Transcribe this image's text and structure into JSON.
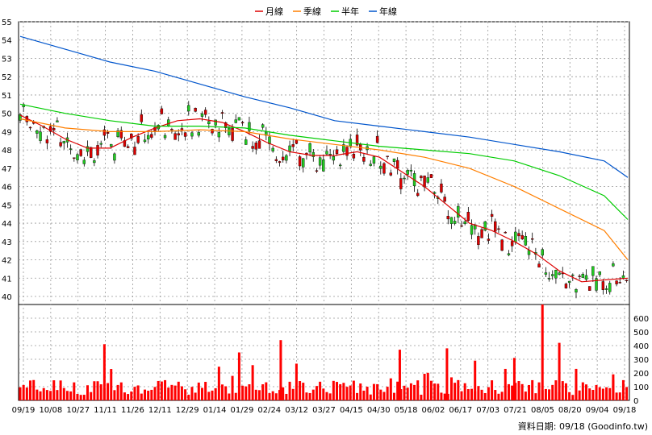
{
  "chart_data": {
    "type": "candlestick",
    "legend": [
      {
        "name": "月線",
        "color": "#dd0000"
      },
      {
        "name": "季線",
        "color": "#ff7f00"
      },
      {
        "name": "半年",
        "color": "#00cc00"
      },
      {
        "name": "年線",
        "color": "#0055cc"
      }
    ],
    "legend_placement": "top-center",
    "grid": true,
    "price_axis": {
      "ylim": [
        40,
        55
      ],
      "ticks": [
        "55",
        "54",
        "53",
        "52",
        "51",
        "50",
        "49",
        "48",
        "47",
        "46",
        "45",
        "44",
        "43",
        "42",
        "41",
        "40"
      ]
    },
    "volume_axis": {
      "ylim": [
        0,
        700
      ],
      "ticks": [
        "600",
        "500",
        "400",
        "300",
        "200",
        "100",
        "0"
      ]
    },
    "x_ticks": [
      "09/19",
      "10/08",
      "10/27",
      "11/11",
      "11/26",
      "12/11",
      "12/29",
      "01/14",
      "01/29",
      "02/24",
      "03/12",
      "03/27",
      "04/15",
      "04/30",
      "05/18",
      "06/02",
      "06/17",
      "07/03",
      "07/21",
      "08/05",
      "08/20",
      "09/04",
      "09/18"
    ],
    "colors": {
      "up": "#dd0000",
      "down": "#22cc22",
      "volume": "#ff0000",
      "grid": "#999999"
    },
    "series": [
      {
        "name": "月線",
        "points": [
          [
            0,
            49.9
          ],
          [
            20,
            49.3
          ],
          [
            40,
            48.6
          ],
          [
            60,
            48.1
          ],
          [
            80,
            48.1
          ],
          [
            100,
            48.7
          ],
          [
            120,
            49.2
          ],
          [
            140,
            49.6
          ],
          [
            160,
            49.7
          ],
          [
            180,
            49.5
          ],
          [
            200,
            49.0
          ],
          [
            220,
            48.4
          ],
          [
            240,
            47.9
          ],
          [
            260,
            47.7
          ],
          [
            280,
            47.7
          ],
          [
            300,
            47.9
          ],
          [
            320,
            47.6
          ],
          [
            340,
            46.8
          ],
          [
            360,
            46.0
          ],
          [
            380,
            45.0
          ],
          [
            400,
            44.0
          ],
          [
            420,
            43.6
          ],
          [
            440,
            43.0
          ],
          [
            460,
            42.3
          ],
          [
            480,
            41.4
          ],
          [
            500,
            40.8
          ],
          [
            520,
            40.9
          ],
          [
            541,
            41.0
          ]
        ]
      },
      {
        "name": "季線",
        "points": [
          [
            0,
            49.7
          ],
          [
            40,
            49.2
          ],
          [
            80,
            49.0
          ],
          [
            120,
            49.0
          ],
          [
            160,
            49.1
          ],
          [
            200,
            49.0
          ],
          [
            240,
            48.6
          ],
          [
            280,
            48.3
          ],
          [
            320,
            48.0
          ],
          [
            360,
            47.6
          ],
          [
            400,
            47.0
          ],
          [
            440,
            46.0
          ],
          [
            480,
            44.8
          ],
          [
            520,
            43.6
          ],
          [
            541,
            42.0
          ]
        ]
      },
      {
        "name": "半年",
        "points": [
          [
            0,
            50.5
          ],
          [
            40,
            50.0
          ],
          [
            80,
            49.6
          ],
          [
            120,
            49.3
          ],
          [
            160,
            49.3
          ],
          [
            200,
            49.2
          ],
          [
            240,
            48.8
          ],
          [
            280,
            48.5
          ],
          [
            320,
            48.2
          ],
          [
            360,
            48.0
          ],
          [
            400,
            47.8
          ],
          [
            440,
            47.4
          ],
          [
            480,
            46.6
          ],
          [
            520,
            45.5
          ],
          [
            541,
            44.2
          ]
        ]
      },
      {
        "name": "年線",
        "points": [
          [
            0,
            54.2
          ],
          [
            40,
            53.5
          ],
          [
            80,
            52.8
          ],
          [
            120,
            52.3
          ],
          [
            160,
            51.6
          ],
          [
            200,
            50.9
          ],
          [
            240,
            50.3
          ],
          [
            280,
            49.6
          ],
          [
            320,
            49.3
          ],
          [
            360,
            49.0
          ],
          [
            400,
            48.7
          ],
          [
            440,
            48.3
          ],
          [
            480,
            47.9
          ],
          [
            520,
            47.4
          ],
          [
            541,
            46.5
          ]
        ]
      }
    ],
    "candles_description_note": "",
    "volume_peaks": [
      410,
      350,
      440,
      370,
      380,
      290,
      310,
      700,
      420,
      230,
      190
    ]
  },
  "footer": {
    "text": "資料日期: 09/18 (Goodinfo.tw)"
  }
}
